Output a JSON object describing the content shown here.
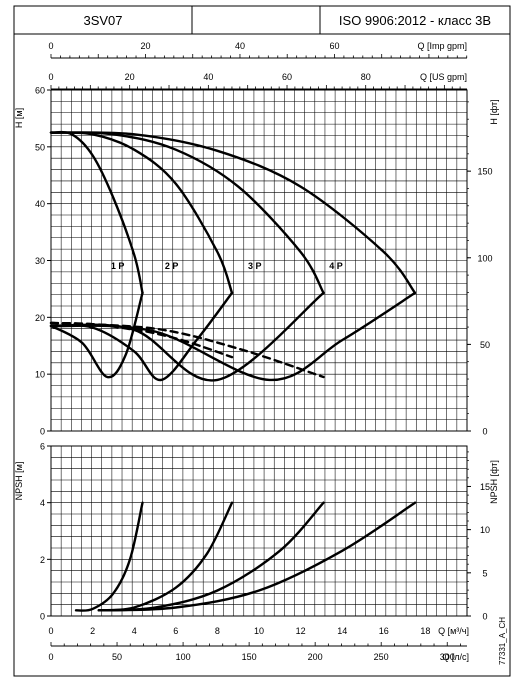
{
  "header": {
    "model": "3SV07",
    "standard": "ISO 9906:2012 - класс 3B"
  },
  "chart_data": [
    {
      "type": "line",
      "title": "",
      "top_axes": [
        {
          "label": "Q [Imp gpm]",
          "ticks": [
            0,
            20,
            40,
            60
          ]
        },
        {
          "label": "Q [US gpm]",
          "ticks": [
            0,
            20,
            40,
            60,
            80
          ]
        }
      ],
      "ylabel": "H [м]",
      "ylim": [
        0,
        60
      ],
      "yticks": [
        0,
        10,
        20,
        30,
        40,
        50,
        60
      ],
      "ylabel_right": "H [фт]",
      "yticks_right": [
        0,
        50,
        100,
        150
      ],
      "xlim": [
        0,
        20
      ],
      "grid": true,
      "series": [
        {
          "name": "1 P",
          "role": "H",
          "x": [
            0,
            1,
            2,
            3,
            4,
            4.4
          ],
          "y": [
            52.5,
            52.2,
            48.5,
            41,
            31,
            24.3
          ]
        },
        {
          "name": "2 P",
          "role": "H",
          "x": [
            0,
            2,
            4,
            6,
            8,
            8.7
          ],
          "y": [
            52.5,
            52.2,
            49.5,
            43.5,
            31.5,
            24.3
          ]
        },
        {
          "name": "3 P",
          "role": "H",
          "x": [
            0,
            3,
            6,
            9,
            12,
            13.1
          ],
          "y": [
            52.5,
            52.2,
            49.5,
            43,
            31.5,
            24.3
          ]
        },
        {
          "name": "4 P",
          "role": "H",
          "x": [
            0,
            4,
            8,
            12,
            16,
            17.5
          ],
          "y": [
            52.5,
            52.2,
            49.3,
            43,
            31.5,
            24.3
          ]
        },
        {
          "role": "efficiency",
          "x": [
            0,
            1.5,
            2.7,
            3.6,
            4.4
          ],
          "y": [
            18.5,
            15.5,
            9.5,
            13.5,
            24.3
          ]
        },
        {
          "role": "efficiency",
          "x": [
            0,
            2,
            4,
            5.3,
            7,
            8.7
          ],
          "y": [
            18.5,
            18.2,
            14,
            9,
            16,
            24.3
          ]
        },
        {
          "role": "efficiency",
          "x": [
            0,
            4,
            8,
            13.1
          ],
          "y": [
            18.5,
            17.8,
            9,
            24.3
          ]
        },
        {
          "role": "efficiency",
          "x": [
            0,
            5,
            10.5,
            14,
            17.5
          ],
          "y": [
            18.5,
            17.5,
            9,
            16,
            24.3
          ]
        },
        {
          "role": "power",
          "x": [
            0,
            2,
            4,
            4.4
          ],
          "y": [
            19,
            18.8,
            17.8,
            17.3
          ]
        },
        {
          "role": "power",
          "x": [
            0,
            3,
            6,
            8.7
          ],
          "y": [
            19,
            18.5,
            16.3,
            13
          ]
        },
        {
          "role": "power",
          "x": [
            0,
            5,
            9,
            13.1
          ],
          "y": [
            19,
            18,
            14.5,
            9.5
          ]
        }
      ],
      "annotations": [
        "1 P",
        "2 P",
        "3 P",
        "4 P"
      ]
    },
    {
      "type": "line",
      "title": "",
      "ylabel": "NPSH [м]",
      "ylim": [
        0,
        6
      ],
      "yticks": [
        0,
        2,
        4,
        6
      ],
      "ylabel_right": "NPSH [фт]",
      "yticks_right": [
        0,
        5,
        10,
        15
      ],
      "xlabel": "Q [м³/ч]",
      "xlim": [
        0,
        20
      ],
      "xticks": [
        0,
        2,
        4,
        6,
        8,
        10,
        12,
        14,
        16,
        18
      ],
      "xlabel_2": "Q [л/с]",
      "xticks_2": [
        0,
        50,
        100,
        150,
        200,
        250,
        300
      ],
      "grid": true,
      "series": [
        {
          "role": "NPSH",
          "x": [
            1.2,
            2,
            3,
            3.8,
            4.4
          ],
          "y": [
            0.2,
            0.25,
            0.8,
            2,
            4
          ]
        },
        {
          "role": "NPSH",
          "x": [
            2.3,
            4,
            6,
            7.5,
            8.7
          ],
          "y": [
            0.2,
            0.3,
            1,
            2.2,
            4
          ]
        },
        {
          "role": "NPSH",
          "x": [
            2.3,
            5,
            8,
            11,
            13.1
          ],
          "y": [
            0.2,
            0.3,
            0.9,
            2.3,
            4
          ]
        },
        {
          "role": "NPSH",
          "x": [
            2.3,
            6,
            10,
            14,
            17.5
          ],
          "y": [
            0.2,
            0.3,
            0.9,
            2.3,
            4
          ]
        }
      ]
    }
  ],
  "footer_code": "77331_A_CH"
}
